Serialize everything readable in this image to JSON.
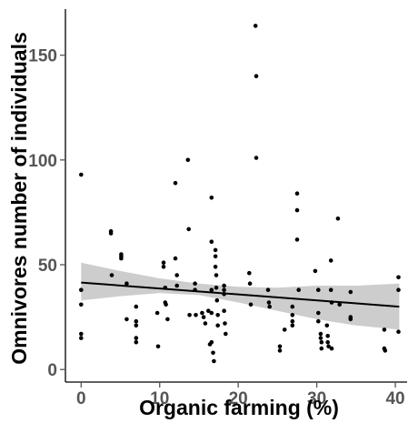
{
  "chart_data": {
    "type": "scatter",
    "title": "",
    "xlabel": "Organic farming (%)",
    "ylabel": "Omnivores number of individuals",
    "xlim": [
      -2,
      41.5
    ],
    "ylim": [
      -6,
      172
    ],
    "xticks": [
      0,
      10,
      20,
      30,
      40
    ],
    "yticks": [
      0,
      50,
      100,
      150
    ],
    "grid": false,
    "legend": "none",
    "colors": {
      "points": "#000000",
      "trend": "#000000",
      "band": "#c8c8c8",
      "axis": "#555555"
    },
    "points": [
      {
        "x": 0,
        "y": 93
      },
      {
        "x": 0,
        "y": 38
      },
      {
        "x": 0,
        "y": 31
      },
      {
        "x": 0,
        "y": 17
      },
      {
        "x": 0,
        "y": 15
      },
      {
        "x": 3.8,
        "y": 66
      },
      {
        "x": 3.8,
        "y": 65
      },
      {
        "x": 3.9,
        "y": 45
      },
      {
        "x": 5.1,
        "y": 55
      },
      {
        "x": 5.1,
        "y": 54
      },
      {
        "x": 5.1,
        "y": 53
      },
      {
        "x": 5.8,
        "y": 41
      },
      {
        "x": 5.8,
        "y": 24
      },
      {
        "x": 7.0,
        "y": 30
      },
      {
        "x": 7.0,
        "y": 23
      },
      {
        "x": 7.0,
        "y": 21
      },
      {
        "x": 7.0,
        "y": 15
      },
      {
        "x": 7.0,
        "y": 13
      },
      {
        "x": 9.7,
        "y": 27
      },
      {
        "x": 9.8,
        "y": 11
      },
      {
        "x": 10.5,
        "y": 51
      },
      {
        "x": 10.5,
        "y": 49
      },
      {
        "x": 10.7,
        "y": 39
      },
      {
        "x": 10.7,
        "y": 32
      },
      {
        "x": 10.8,
        "y": 31
      },
      {
        "x": 11.0,
        "y": 24
      },
      {
        "x": 12.0,
        "y": 89
      },
      {
        "x": 12.0,
        "y": 53
      },
      {
        "x": 12.2,
        "y": 45
      },
      {
        "x": 12.2,
        "y": 40
      },
      {
        "x": 13.6,
        "y": 100
      },
      {
        "x": 13.7,
        "y": 67
      },
      {
        "x": 13.8,
        "y": 26
      },
      {
        "x": 14.5,
        "y": 41
      },
      {
        "x": 14.5,
        "y": 38
      },
      {
        "x": 14.6,
        "y": 26
      },
      {
        "x": 15.4,
        "y": 27
      },
      {
        "x": 15.6,
        "y": 25
      },
      {
        "x": 15.8,
        "y": 22
      },
      {
        "x": 16.2,
        "y": 28
      },
      {
        "x": 16.4,
        "y": 12
      },
      {
        "x": 16.6,
        "y": 82
      },
      {
        "x": 16.6,
        "y": 61
      },
      {
        "x": 16.6,
        "y": 38
      },
      {
        "x": 16.6,
        "y": 27
      },
      {
        "x": 16.6,
        "y": 13
      },
      {
        "x": 16.8,
        "y": 8
      },
      {
        "x": 16.9,
        "y": 4
      },
      {
        "x": 17.1,
        "y": 57
      },
      {
        "x": 17.1,
        "y": 54
      },
      {
        "x": 17.1,
        "y": 49
      },
      {
        "x": 17.2,
        "y": 45
      },
      {
        "x": 17.2,
        "y": 39
      },
      {
        "x": 17.3,
        "y": 33
      },
      {
        "x": 17.4,
        "y": 26
      },
      {
        "x": 17.4,
        "y": 21
      },
      {
        "x": 18.2,
        "y": 40
      },
      {
        "x": 18.2,
        "y": 38
      },
      {
        "x": 18.2,
        "y": 36
      },
      {
        "x": 18.2,
        "y": 28
      },
      {
        "x": 18.3,
        "y": 22
      },
      {
        "x": 18.4,
        "y": 17
      },
      {
        "x": 21.4,
        "y": 46
      },
      {
        "x": 21.5,
        "y": 41
      },
      {
        "x": 21.6,
        "y": 31
      },
      {
        "x": 22.2,
        "y": 164
      },
      {
        "x": 22.3,
        "y": 140
      },
      {
        "x": 22.3,
        "y": 101
      },
      {
        "x": 23.8,
        "y": 38
      },
      {
        "x": 23.9,
        "y": 32
      },
      {
        "x": 24.0,
        "y": 30
      },
      {
        "x": 25.3,
        "y": 11
      },
      {
        "x": 25.3,
        "y": 9
      },
      {
        "x": 25.9,
        "y": 19
      },
      {
        "x": 26.9,
        "y": 30
      },
      {
        "x": 26.9,
        "y": 26
      },
      {
        "x": 26.9,
        "y": 23
      },
      {
        "x": 26.9,
        "y": 21
      },
      {
        "x": 27.5,
        "y": 84
      },
      {
        "x": 27.5,
        "y": 76
      },
      {
        "x": 27.5,
        "y": 62
      },
      {
        "x": 27.7,
        "y": 38
      },
      {
        "x": 29.8,
        "y": 47
      },
      {
        "x": 30.2,
        "y": 38
      },
      {
        "x": 30.2,
        "y": 27
      },
      {
        "x": 30.2,
        "y": 23
      },
      {
        "x": 30.5,
        "y": 17
      },
      {
        "x": 30.5,
        "y": 15
      },
      {
        "x": 30.6,
        "y": 13
      },
      {
        "x": 30.6,
        "y": 10
      },
      {
        "x": 31.3,
        "y": 21
      },
      {
        "x": 31.4,
        "y": 16
      },
      {
        "x": 31.4,
        "y": 13
      },
      {
        "x": 31.5,
        "y": 11
      },
      {
        "x": 31.8,
        "y": 52
      },
      {
        "x": 31.8,
        "y": 38
      },
      {
        "x": 31.9,
        "y": 32
      },
      {
        "x": 31.9,
        "y": 10
      },
      {
        "x": 32.7,
        "y": 72
      },
      {
        "x": 32.9,
        "y": 31
      },
      {
        "x": 34.3,
        "y": 37
      },
      {
        "x": 34.3,
        "y": 25
      },
      {
        "x": 34.3,
        "y": 24
      },
      {
        "x": 38.6,
        "y": 19
      },
      {
        "x": 38.6,
        "y": 10
      },
      {
        "x": 38.7,
        "y": 9
      },
      {
        "x": 40.4,
        "y": 44
      },
      {
        "x": 40.4,
        "y": 38
      },
      {
        "x": 40.4,
        "y": 18
      }
    ],
    "trend_line": {
      "x": [
        0,
        40.5
      ],
      "y": [
        41.5,
        30
      ]
    },
    "confidence_band": {
      "x": [
        0,
        5,
        10,
        15,
        20,
        25,
        30,
        35,
        40.5
      ],
      "lower": [
        33,
        35,
        36.5,
        35.5,
        32,
        28,
        24,
        21,
        19
      ],
      "upper": [
        51,
        47,
        43.5,
        41,
        39.5,
        39,
        40,
        40,
        41
      ]
    }
  }
}
